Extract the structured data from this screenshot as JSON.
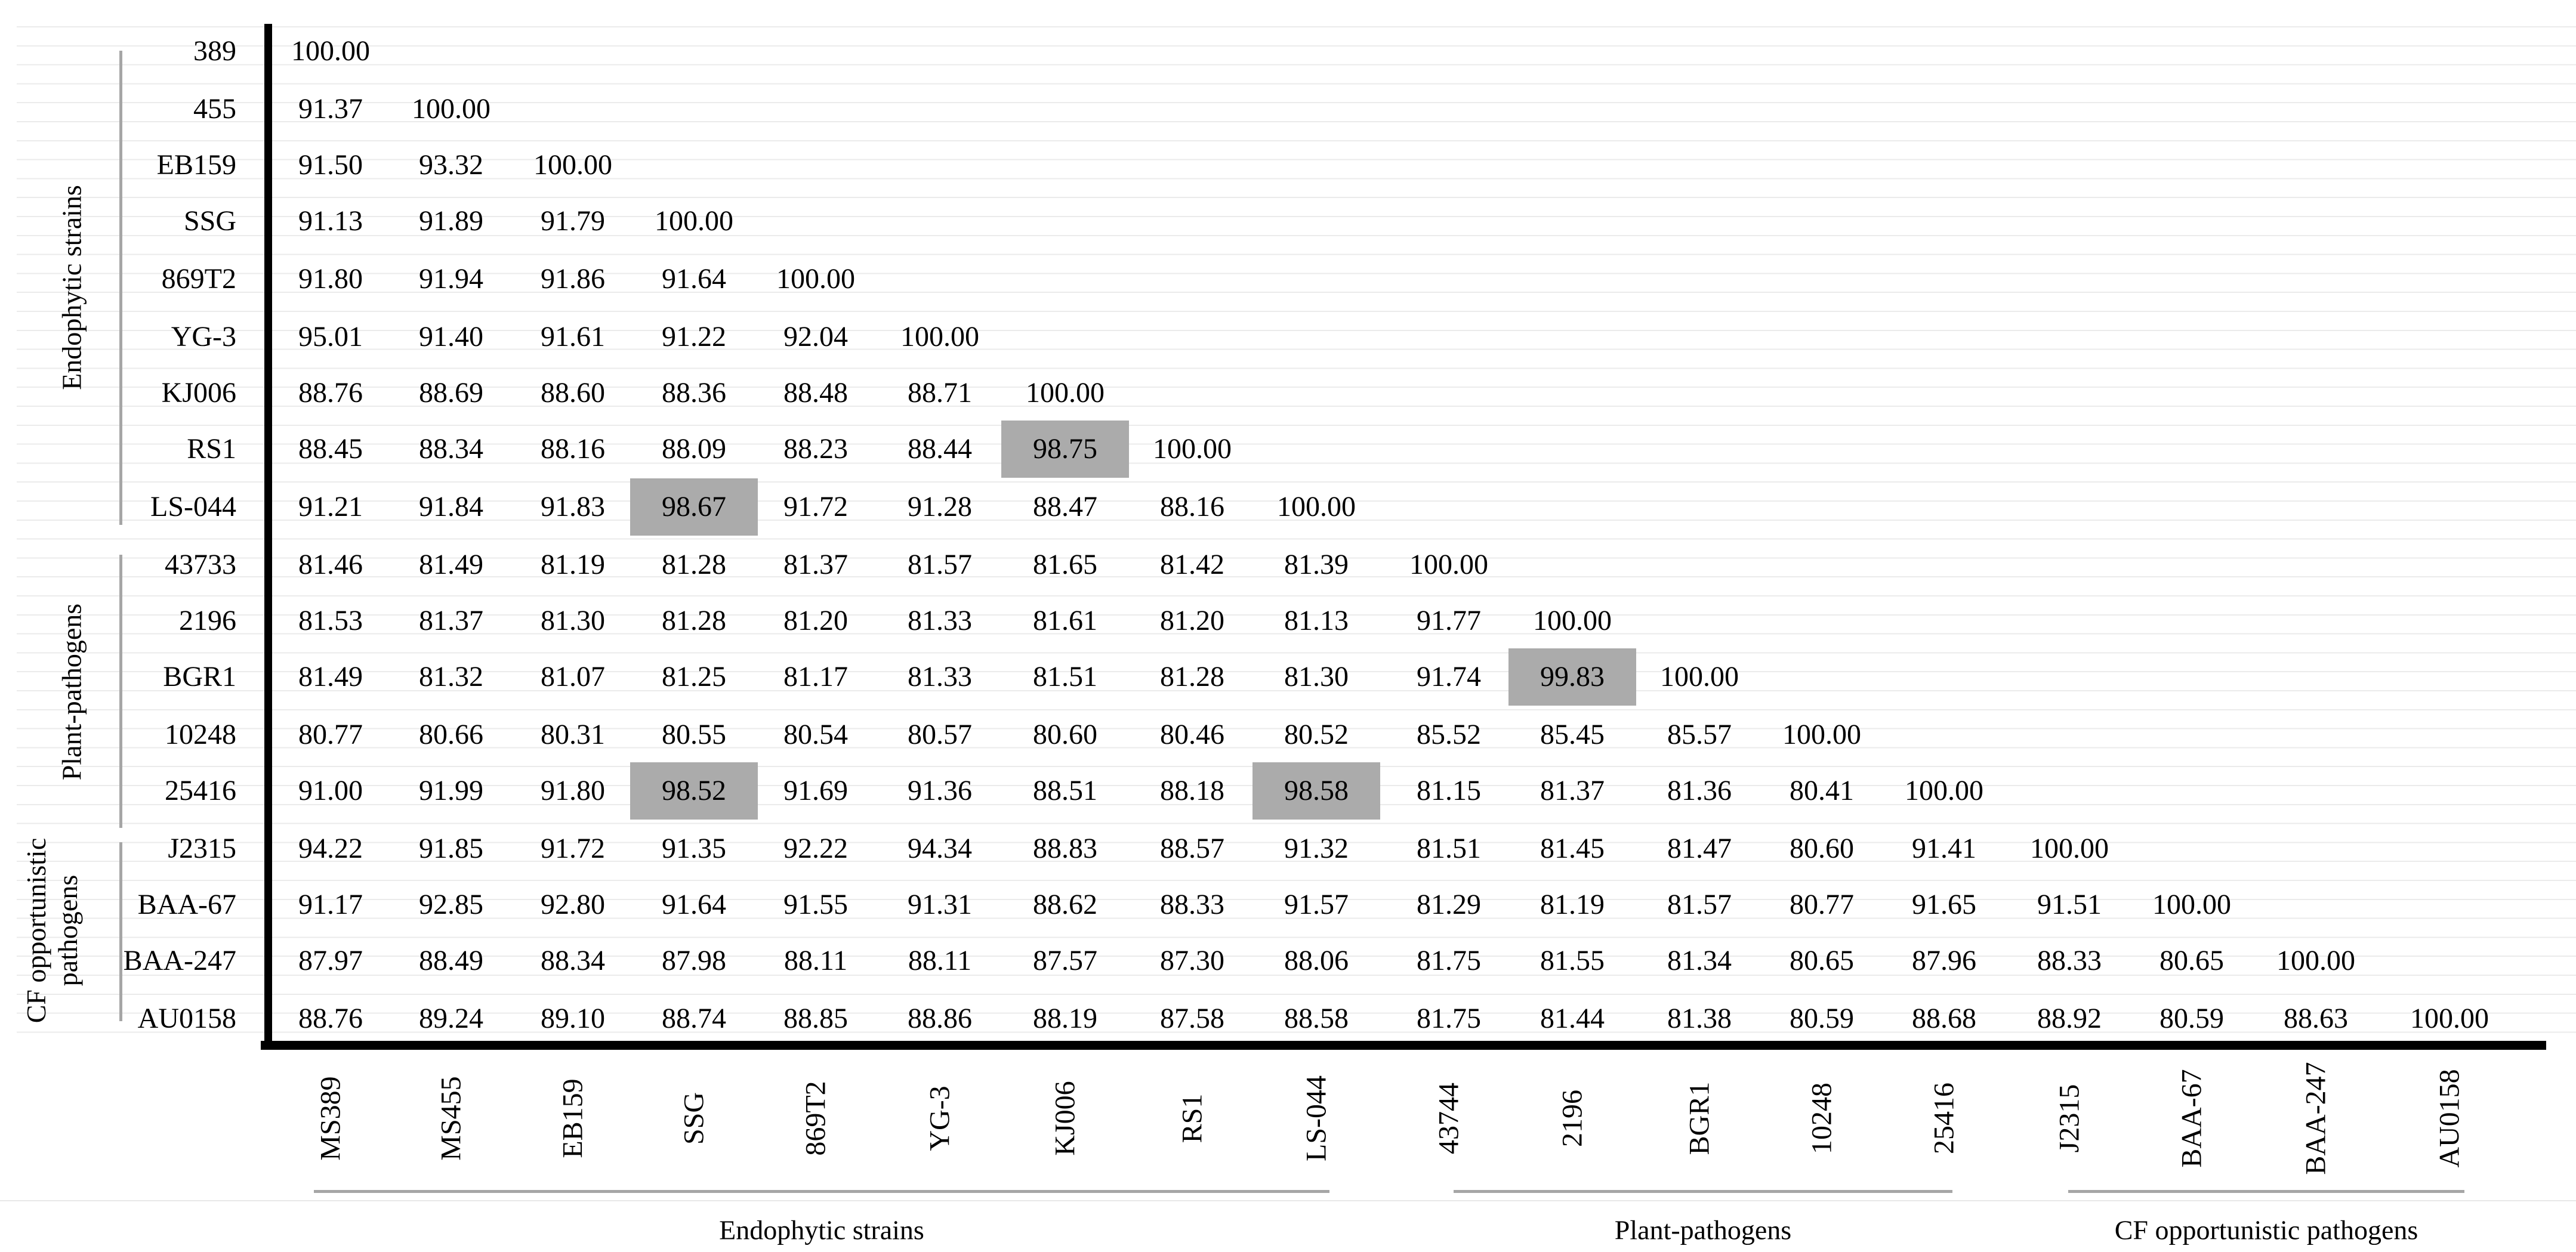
{
  "figure": {
    "kind": "pairwise-similarity-matrix",
    "highlight_color": "#ABABAB"
  },
  "chart_data": {
    "type": "heatmap",
    "title": "",
    "value_decimals": 2,
    "rows": [
      "389",
      "455",
      "EB159",
      "SSG",
      "869T2",
      "YG-3",
      "KJ006",
      "RS1",
      "LS-044",
      "43733",
      "2196",
      "BGR1",
      "10248",
      "25416",
      "J2315",
      "BAA-67",
      "BAA-247",
      "AU0158"
    ],
    "columns": [
      "MS389",
      "MS455",
      "EB159",
      "SSG",
      "869T2",
      "YG-3",
      "KJ006",
      "RS1",
      "LS-044",
      "43744",
      "2196",
      "BGR1",
      "10248",
      "25416",
      "J2315",
      "BAA-67",
      "BAA-247",
      "AU0158"
    ],
    "row_groups": [
      {
        "label": "Endophytic strains",
        "rows": [
          "389",
          "455",
          "EB159",
          "SSG",
          "869T2",
          "YG-3",
          "KJ006",
          "RS1",
          "LS-044"
        ]
      },
      {
        "label": "Plant-pathogens",
        "rows": [
          "43733",
          "2196",
          "BGR1",
          "10248",
          "25416"
        ]
      },
      {
        "label": "CF opportunistic pathogens",
        "rows": [
          "J2315",
          "BAA-67",
          "BAA-247",
          "AU0158"
        ]
      }
    ],
    "column_groups": [
      {
        "label": "Endophytic strains",
        "columns": [
          "MS389",
          "MS455",
          "EB159",
          "SSG",
          "869T2",
          "YG-3",
          "KJ006",
          "RS1",
          "LS-044"
        ]
      },
      {
        "label": "Plant-pathogens",
        "columns": [
          "43744",
          "2196",
          "BGR1",
          "10248",
          "25416"
        ]
      },
      {
        "label": "CF opportunistic pathogens",
        "columns": [
          "J2315",
          "BAA-67",
          "BAA-247",
          "AU0158"
        ]
      }
    ],
    "values": [
      [
        100.0
      ],
      [
        91.37,
        100.0
      ],
      [
        91.5,
        93.32,
        100.0
      ],
      [
        91.13,
        91.89,
        91.79,
        100.0
      ],
      [
        91.8,
        91.94,
        91.86,
        91.64,
        100.0
      ],
      [
        95.01,
        91.4,
        91.61,
        91.22,
        92.04,
        100.0
      ],
      [
        88.76,
        88.69,
        88.6,
        88.36,
        88.48,
        88.71,
        100.0
      ],
      [
        88.45,
        88.34,
        88.16,
        88.09,
        88.23,
        88.44,
        98.75,
        100.0
      ],
      [
        91.21,
        91.84,
        91.83,
        98.67,
        91.72,
        91.28,
        88.47,
        88.16,
        100.0
      ],
      [
        81.46,
        81.49,
        81.19,
        81.28,
        81.37,
        81.57,
        81.65,
        81.42,
        81.39,
        100.0
      ],
      [
        81.53,
        81.37,
        81.3,
        81.28,
        81.2,
        81.33,
        81.61,
        81.2,
        81.13,
        91.77,
        100.0
      ],
      [
        81.49,
        81.32,
        81.07,
        81.25,
        81.17,
        81.33,
        81.51,
        81.28,
        81.3,
        91.74,
        99.83,
        100.0
      ],
      [
        80.77,
        80.66,
        80.31,
        80.55,
        80.54,
        80.57,
        80.6,
        80.46,
        80.52,
        85.52,
        85.45,
        85.57,
        100.0
      ],
      [
        91.0,
        91.99,
        91.8,
        98.52,
        91.69,
        91.36,
        88.51,
        88.18,
        98.58,
        81.15,
        81.37,
        81.36,
        80.41,
        100.0
      ],
      [
        94.22,
        91.85,
        91.72,
        91.35,
        92.22,
        94.34,
        88.83,
        88.57,
        91.32,
        81.51,
        81.45,
        81.47,
        80.6,
        91.41,
        100.0
      ],
      [
        91.17,
        92.85,
        92.8,
        91.64,
        91.55,
        91.31,
        88.62,
        88.33,
        91.57,
        81.29,
        81.19,
        81.57,
        80.77,
        91.65,
        91.51,
        100.0
      ],
      [
        87.97,
        88.49,
        88.34,
        87.98,
        88.11,
        88.11,
        87.57,
        87.3,
        88.06,
        81.75,
        81.55,
        81.34,
        80.65,
        87.96,
        88.33,
        80.65,
        100.0
      ],
      [
        88.76,
        89.24,
        89.1,
        88.74,
        88.85,
        88.86,
        88.19,
        87.58,
        88.58,
        81.75,
        81.44,
        81.38,
        80.59,
        88.68,
        88.92,
        80.59,
        88.63,
        100.0
      ]
    ],
    "highlighted_cells": [
      {
        "row_index": 7,
        "col_index": 6,
        "row": "RS1",
        "column": "KJ006",
        "value": 98.75
      },
      {
        "row_index": 8,
        "col_index": 3,
        "row": "LS-044",
        "column": "SSG",
        "value": 98.67
      },
      {
        "row_index": 11,
        "col_index": 10,
        "row": "BGR1",
        "column": "2196",
        "value": 99.83
      },
      {
        "row_index": 13,
        "col_index": 3,
        "row": "25416",
        "column": "SSG",
        "value": 98.52
      },
      {
        "row_index": 13,
        "col_index": 8,
        "row": "25416",
        "column": "LS-044",
        "value": 98.58
      }
    ]
  }
}
